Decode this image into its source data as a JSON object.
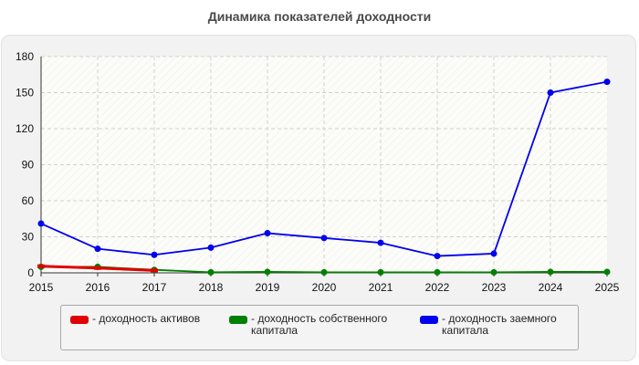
{
  "title": "Динамика показателей доходности",
  "chart_data": {
    "type": "line",
    "title": "Динамика показателей доходности",
    "x": [
      "2015",
      "2016",
      "2017",
      "2018",
      "2019",
      "2020",
      "2021",
      "2022",
      "2023",
      "2024",
      "2025"
    ],
    "y_ticks": [
      "0",
      "30",
      "60",
      "90",
      "120",
      "150",
      "180"
    ],
    "ylim": [
      0,
      180
    ],
    "grid": true,
    "legend_position": "bottom",
    "series": [
      {
        "name": "- доходность активов",
        "color": "#e00000",
        "values": [
          5.5,
          4.0,
          2.0,
          null,
          null,
          null,
          null,
          null,
          null,
          null,
          null
        ]
      },
      {
        "name": "- доходность собственного капитала",
        "color": "#008000",
        "values": [
          5.0,
          5.0,
          2.5,
          0.5,
          0.8,
          0.5,
          0.5,
          0.5,
          0.5,
          0.8,
          0.8
        ]
      },
      {
        "name": "- доходность заемного капитала",
        "color": "#0000ee",
        "values": [
          41,
          20,
          15,
          21,
          33,
          29,
          25,
          14,
          16,
          150,
          159
        ]
      }
    ]
  }
}
